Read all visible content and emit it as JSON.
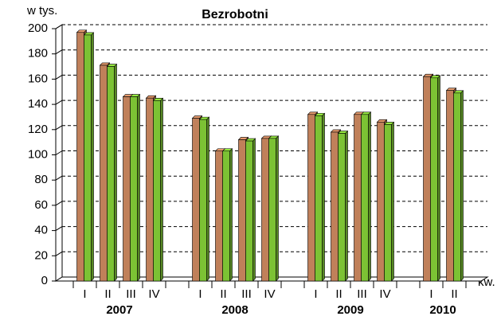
{
  "chart_data": {
    "type": "bar3d",
    "title": "Bezrobotni",
    "y_label": "w tys.",
    "x_label": "kw.",
    "groups": [
      {
        "label": "2007",
        "categories": [
          "I",
          "II",
          "III",
          "IV"
        ]
      },
      {
        "label": "2008",
        "categories": [
          "I",
          "II",
          "III",
          "IV"
        ]
      },
      {
        "label": "2009",
        "categories": [
          "I",
          "II",
          "III",
          "IV"
        ]
      },
      {
        "label": "2010",
        "categories": [
          "I",
          "II"
        ]
      }
    ],
    "series": [
      {
        "color": "#c0805a",
        "values": [
          197,
          171,
          146,
          145,
          129,
          103,
          112,
          113,
          132,
          118,
          132,
          126,
          162,
          151
        ]
      },
      {
        "color": "#7cc234",
        "values": [
          195,
          170,
          146,
          143,
          128,
          103,
          111,
          113,
          131,
          117,
          132,
          124,
          161,
          149
        ]
      }
    ],
    "ylim": [
      0,
      200
    ],
    "yticks": [
      0,
      20,
      40,
      60,
      80,
      100,
      120,
      140,
      160,
      180,
      200
    ],
    "grid": true
  }
}
